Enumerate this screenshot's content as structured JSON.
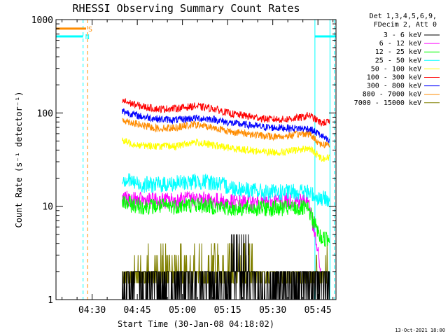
{
  "chart_data": {
    "type": "line",
    "title": "RHESSI Observing Summary Count Rates",
    "xlabel": "Start Time (30-Jan-08 04:18:02)",
    "ylabel": "Count Rate (s⁻¹ detector⁻¹)",
    "x_unit": "minutes since 04:18:02",
    "xlim": [
      0,
      93
    ],
    "ylim": [
      1,
      1000
    ],
    "y_scale": "log",
    "x_ticks": [
      {
        "x": 12,
        "label": "04:30"
      },
      {
        "x": 27,
        "label": "04:45"
      },
      {
        "x": 42,
        "label": "05:00"
      },
      {
        "x": 57,
        "label": "05:15"
      },
      {
        "x": 72,
        "label": "05:30"
      },
      {
        "x": 87,
        "label": "05:45"
      }
    ],
    "y_ticks": [
      {
        "y": 1,
        "label": "1"
      },
      {
        "y": 10,
        "label": "10"
      },
      {
        "y": 100,
        "label": "100"
      },
      {
        "y": 1000,
        "label": "1000"
      }
    ],
    "legend_header": [
      "Det 1,3,4,5,6,9,",
      "FDecim 2, Att 0"
    ],
    "legend_position": "right",
    "series": [
      {
        "name": "3 - 6 keV",
        "color": "#000000",
        "x": [
          22,
          28,
          34,
          40,
          46,
          52,
          58,
          64,
          70,
          76,
          82,
          88,
          91
        ],
        "y": [
          1.5,
          1.5,
          1.5,
          1.5,
          1.5,
          1.5,
          1.5,
          1.5,
          1.5,
          1.5,
          1.5,
          1.5,
          1.5
        ]
      },
      {
        "name": "6 - 12 keV",
        "color": "#ff00ff",
        "x": [
          22,
          28,
          34,
          40,
          46,
          52,
          58,
          64,
          70,
          76,
          82,
          84,
          88
        ],
        "y": [
          12,
          11.5,
          11.5,
          11.5,
          12,
          11.5,
          11,
          11,
          11,
          11.5,
          11.5,
          11.5,
          2
        ]
      },
      {
        "name": "12 - 25 keV",
        "color": "#00ff00",
        "x": [
          22,
          28,
          34,
          40,
          46,
          52,
          58,
          64,
          70,
          76,
          82,
          84,
          88,
          91
        ],
        "y": [
          11,
          10,
          10,
          10,
          10.5,
          10,
          9.5,
          9.5,
          9.5,
          9.5,
          9.5,
          9,
          4.5,
          4.5
        ]
      },
      {
        "name": "25 - 50 keV",
        "color": "#00ffff",
        "x": [
          22,
          28,
          34,
          40,
          46,
          52,
          58,
          64,
          70,
          76,
          82,
          84,
          88,
          91
        ],
        "y": [
          20,
          17,
          17,
          17.5,
          18.5,
          18,
          16,
          15,
          14,
          14,
          14.5,
          14,
          12,
          12
        ]
      },
      {
        "name": "50 - 100 keV",
        "color": "#ffff00",
        "x": [
          22,
          28,
          34,
          40,
          46,
          52,
          58,
          64,
          70,
          76,
          82,
          84,
          88,
          91
        ],
        "y": [
          50,
          45,
          44,
          44,
          49,
          45,
          42,
          40,
          38,
          38,
          41,
          42,
          33,
          33
        ]
      },
      {
        "name": "100 - 300 keV",
        "color": "#ff0000",
        "x": [
          22,
          28,
          34,
          40,
          46,
          52,
          58,
          64,
          70,
          76,
          82,
          84,
          88,
          91
        ],
        "y": [
          135,
          118,
          110,
          112,
          118,
          112,
          98,
          92,
          86,
          85,
          90,
          95,
          78,
          80
        ]
      },
      {
        "name": "300 - 800 keV",
        "color": "#0000ff",
        "x": [
          22,
          28,
          34,
          40,
          46,
          52,
          58,
          64,
          70,
          76,
          82,
          84,
          88,
          91
        ],
        "y": [
          105,
          92,
          86,
          84,
          88,
          86,
          78,
          74,
          70,
          69,
          68,
          68,
          58,
          48
        ]
      },
      {
        "name": "800 - 7000 keV",
        "color": "#ff8c00",
        "x": [
          22,
          28,
          34,
          40,
          46,
          52,
          58,
          64,
          70,
          76,
          82,
          84,
          88,
          91
        ],
        "y": [
          85,
          74,
          68,
          70,
          75,
          70,
          63,
          60,
          56,
          56,
          60,
          60,
          46,
          46
        ]
      },
      {
        "name": "7000 - 15000 keV",
        "color": "#808000",
        "x": [
          22,
          28,
          34,
          40,
          46,
          52,
          58,
          64,
          70,
          76,
          82,
          84,
          88,
          91
        ],
        "y": [
          2,
          2,
          2,
          2,
          3,
          2,
          2,
          2,
          2,
          2,
          2,
          2,
          2,
          2.6
        ]
      }
    ],
    "flags": [
      {
        "label": "S",
        "color": "#ff8c00",
        "x": [
          0,
          10
        ],
        "y": [
          800,
          800
        ]
      },
      {
        "label": "N",
        "color": "#00ffff",
        "x": [
          0,
          9
        ],
        "y": [
          660,
          660
        ]
      },
      {
        "label": "",
        "color": "#00ffff",
        "x": [
          86,
          93
        ],
        "y": [
          660,
          660
        ]
      }
    ],
    "vlines": [
      {
        "x": 0,
        "color": "#00ffff",
        "style": "solid"
      },
      {
        "x": 9,
        "color": "#00ffff",
        "style": "dashed"
      },
      {
        "x": 10.5,
        "color": "#ff8c00",
        "style": "dashed"
      },
      {
        "x": 86,
        "color": "#00ffff",
        "style": "solid"
      },
      {
        "x": 91,
        "color": "#00ffff",
        "style": "solid"
      },
      {
        "x": 92.5,
        "color": "#00ffff",
        "style": "dashed"
      }
    ],
    "timestamp": "13-Oct-2021 18:00"
  }
}
